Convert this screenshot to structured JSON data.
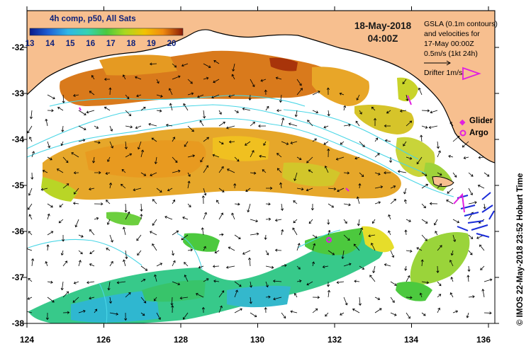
{
  "map": {
    "colorbar": {
      "title": "4h comp, p50, All Sats",
      "ticks": [
        "13",
        "14",
        "15",
        "16",
        "17",
        "18",
        "19",
        "20"
      ],
      "colors": [
        "#0a1a8a",
        "#1f5fd4",
        "#2fb7e6",
        "#35d3b0",
        "#4cc93e",
        "#a8d820",
        "#f2c200",
        "#f08a10",
        "#c8400a",
        "#8a1a08"
      ]
    },
    "date": "18-May-2018",
    "time": "04:00Z",
    "gsla_lines": [
      "GSLA (0.1m contours)",
      "and velocities for",
      "17-May 00:00Z",
      "0.5m/s (1kt 24h)"
    ],
    "drifter_label": "Drifter 1m/s",
    "legend": {
      "glider": "Glider",
      "argo": "Argo"
    },
    "credit": "© IMOS 22-May-2018 23:52 Hobart Time",
    "y_ticks": [
      "-32",
      "-33",
      "-34",
      "-35",
      "-36",
      "-37",
      "-38"
    ],
    "x_ticks": [
      "124",
      "126",
      "128",
      "130",
      "132",
      "134",
      "136"
    ],
    "colors": {
      "land": "#f7bf8f",
      "coast": "#000000",
      "contour": "#49d6e6",
      "glider": "#e020e0",
      "argo": "#e020e0",
      "vector": "#000000",
      "drifter": "#1a2cd8"
    }
  }
}
